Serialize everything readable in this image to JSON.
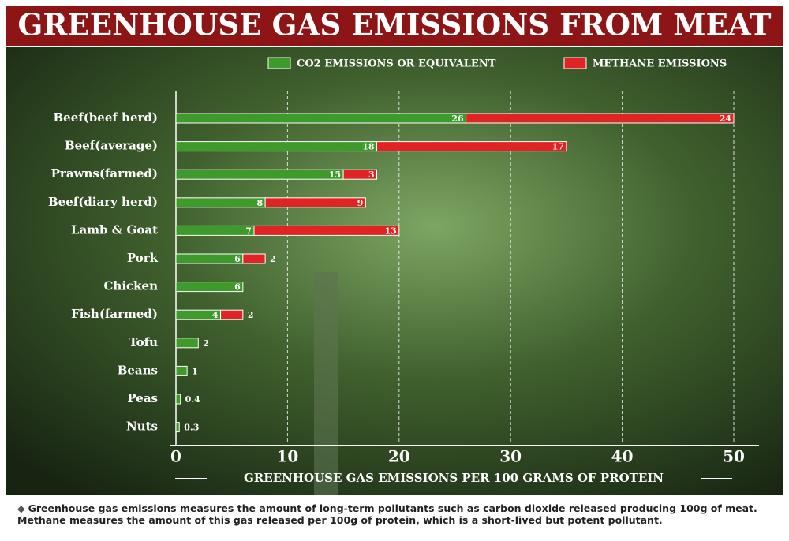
{
  "chart_data": {
    "type": "bar",
    "title": "GREENHOUSE GAS EMISSIONS FROM MEAT",
    "categories": [
      "Beef(beef herd)",
      "Beef(average)",
      "Prawns(farmed)",
      "Beef(diary herd)",
      "Lamb & Goat",
      "Pork",
      "Chicken",
      "Fish(farmed)",
      "Tofu",
      "Beans",
      "Peas",
      "Nuts"
    ],
    "series": [
      {
        "name": "CO2 EMISSIONS OR EQUIVALENT",
        "color": "#3e9a2a",
        "values": [
          26,
          18,
          15,
          8,
          7,
          6,
          6,
          4,
          2,
          1,
          0.4,
          0.3
        ]
      },
      {
        "name": "METHANE EMISSIONS",
        "color": "#e02424",
        "values": [
          24,
          17,
          3,
          9,
          13,
          2,
          null,
          2,
          null,
          null,
          null,
          null
        ]
      }
    ],
    "xlim": [
      0,
      50
    ],
    "xticks": [
      0,
      10,
      20,
      30,
      40,
      50
    ],
    "grid": true,
    "xlabel": "GREENHOUSE GAS EMISSIONS PER 100 GRAMS OF PROTEIN",
    "footnote": "Greenhouse gas emissions measures the amount of long-term pollutants such as carbon dioxide released producing 100g of meat. Methane measures the amount of this gas released per 100g of protein, which is a short-lived but potent pollutant."
  }
}
